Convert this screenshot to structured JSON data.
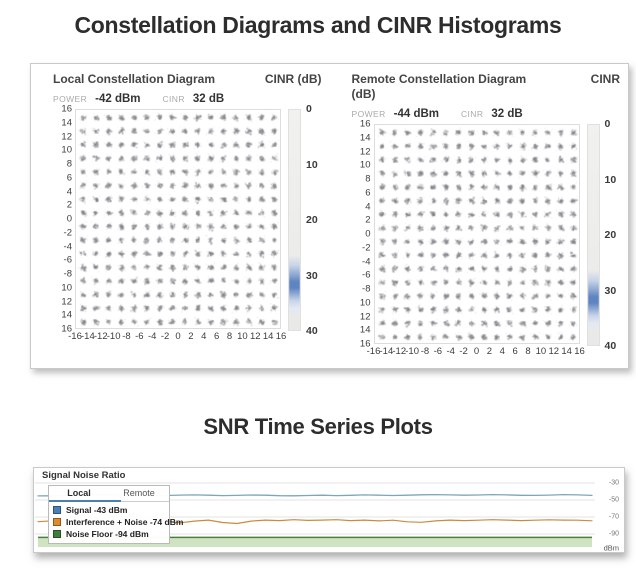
{
  "titles": {
    "main": "Constellation Diagrams and CINR Histograms",
    "snr": "SNR Time Series Plots"
  },
  "local": {
    "title": "Local Constellation Diagram",
    "cinr_header": "CINR (dB)",
    "power_label": "POWER",
    "power_value": "-42 dBm",
    "cinr_label": "CINR",
    "cinr_value": "32 dB"
  },
  "remote": {
    "title": "Remote Constellation Diagram",
    "cinr_header_line1": "CINR",
    "cinr_header_line2": "(dB)",
    "power_label": "POWER",
    "power_value": "-44 dBm",
    "cinr_label": "CINR",
    "cinr_value": "32 dB"
  },
  "axes": {
    "y_ticks": [
      "16",
      "14",
      "12",
      "10",
      "8",
      "6",
      "4",
      "2",
      "0",
      "-2",
      "-4",
      "-6",
      "-8",
      "10",
      "12",
      "14",
      "16"
    ],
    "x_ticks": [
      "-16",
      "-14",
      "-12",
      "-10",
      "-8",
      "-6",
      "-4",
      "-2",
      "0",
      "2",
      "4",
      "6",
      "8",
      "10",
      "12",
      "14",
      "16"
    ],
    "hist_ticks": [
      "0",
      "10",
      "20",
      "30",
      "40"
    ]
  },
  "snr": {
    "header": "Signal Noise Ratio",
    "tabs": [
      {
        "label": "Local",
        "active": true
      },
      {
        "label": "Remote",
        "active": false
      }
    ],
    "legend": [
      {
        "label": "Signal -43 dBm",
        "color": "#4a7fb5"
      },
      {
        "label": "Interference + Noise -74 dBm",
        "color": "#df8a2d"
      },
      {
        "label": "Noise Floor -94 dBm",
        "color": "#3f7d3f"
      }
    ],
    "y_axis_ticks": [
      "-30",
      "-50",
      "-70",
      "-90"
    ],
    "y_axis_unit": "dBm"
  },
  "colors": {
    "signal_line": "#7ba7b8",
    "interference_line": "#cd8a3f",
    "noise_fill": "#cfe3c2",
    "noise_line": "#4c7f3f",
    "gridline": "#e3e3e3",
    "constellation_dot": "#85858b",
    "tab_underline": "#4b7fae",
    "hist_band_core": "#5e84c2"
  },
  "chart_data": [
    {
      "type": "scatter",
      "title": "Local Constellation Diagram",
      "description": "256-QAM constellation: 16x16 grid of noisy symbol clusters",
      "x_range": [
        -16,
        16
      ],
      "y_range": [
        -16,
        16
      ],
      "tick_step": 2,
      "power": "-42 dBm",
      "cinr": "32 dB",
      "histogram": {
        "label": "CINR (dB)",
        "range": [
          0,
          40
        ],
        "peak_value": 32,
        "band": [
          27,
          36
        ]
      }
    },
    {
      "type": "scatter",
      "title": "Remote Constellation Diagram",
      "description": "256-QAM constellation: 16x16 grid of noisy symbol clusters",
      "x_range": [
        -16,
        16
      ],
      "y_range": [
        -16,
        16
      ],
      "tick_step": 2,
      "power": "-44 dBm",
      "cinr": "32 dB",
      "histogram": {
        "label": "CINR (dB)",
        "range": [
          0,
          40
        ],
        "peak_value": 32,
        "band": [
          27,
          36
        ]
      }
    },
    {
      "type": "line",
      "title": "Signal Noise Ratio",
      "unit": "dBm",
      "ylim": [
        -105,
        -25
      ],
      "yticks": [
        -30,
        -50,
        -70,
        -90
      ],
      "legend_position": "top-left",
      "series": [
        {
          "name": "Signal -43 dBm",
          "values": [
            -45.2,
            -45.0,
            -44.6,
            -44.0,
            -43.6,
            -43.8,
            -44.3,
            -44.8,
            -45.0,
            -44.7,
            -44.2,
            -44.0,
            -44.3,
            -44.8,
            -44.6,
            -44.1,
            -44.4,
            -44.9,
            -45.1,
            -44.7,
            -44.4,
            -44.8,
            -44.5,
            -44.0,
            -44.3,
            -44.7,
            -44.4,
            -43.9,
            -43.6,
            -44.0,
            -44.4,
            -44.1,
            -43.7,
            -44.0,
            -44.5,
            -44.6,
            -44.2,
            -43.7,
            -44.0,
            -44.6
          ]
        },
        {
          "name": "Interference + Noise -74 dBm",
          "values": [
            -75.5,
            -74.5,
            -73.8,
            -74.8,
            -75.8,
            -74.3,
            -73.3,
            -74.2,
            -73.6,
            -74.8,
            -76.8,
            -74.8,
            -73.6,
            -76.5,
            -77.6,
            -74.8,
            -73.6,
            -74.2,
            -73.2,
            -74.0,
            -73.6,
            -73.2,
            -74.2,
            -73.6,
            -74.6,
            -73.8,
            -75.6,
            -76.2,
            -74.6,
            -73.6,
            -74.2,
            -73.8,
            -73.2,
            -73.6,
            -74.2,
            -73.8,
            -73.3,
            -73.6,
            -73.8,
            -74.5
          ]
        },
        {
          "name": "Noise Floor -94 dBm",
          "constant": -94
        }
      ]
    }
  ]
}
